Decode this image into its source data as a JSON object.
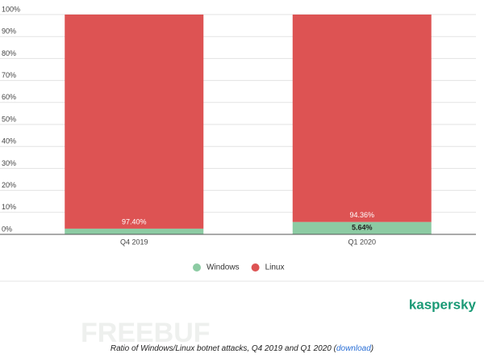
{
  "chart_data": {
    "type": "stacked_bar",
    "categories": [
      "Q4 2019",
      "Q1 2020"
    ],
    "series": [
      {
        "name": "Windows",
        "color": "#8ccba3",
        "values": [
          2.6,
          5.64
        ],
        "value_labels": [
          null,
          "5.64%"
        ]
      },
      {
        "name": "Linux",
        "color": "#dd5353",
        "values": [
          97.4,
          94.36
        ],
        "value_labels": [
          "97.40%",
          "94.36%"
        ]
      }
    ],
    "ylim": [
      0,
      100
    ],
    "yticks": [
      {
        "value": 0,
        "label": "0%"
      },
      {
        "value": 10,
        "label": "10%"
      },
      {
        "value": 20,
        "label": "20%"
      },
      {
        "value": 30,
        "label": "30%"
      },
      {
        "value": 40,
        "label": "40%"
      },
      {
        "value": 50,
        "label": "50%"
      },
      {
        "value": 60,
        "label": "60%"
      },
      {
        "value": 70,
        "label": "70%"
      },
      {
        "value": 80,
        "label": "80%"
      },
      {
        "value": 90,
        "label": "90%"
      },
      {
        "value": 100,
        "label": "100%"
      }
    ],
    "grid": true,
    "legend": "bottom"
  },
  "branding": "kaspersky",
  "watermark": "FREEBUF",
  "caption": {
    "text": "Ratio of Windows/Linux botnet attacks, Q4 2019 and Q1 2020 (",
    "link": "download",
    "end": ")"
  }
}
